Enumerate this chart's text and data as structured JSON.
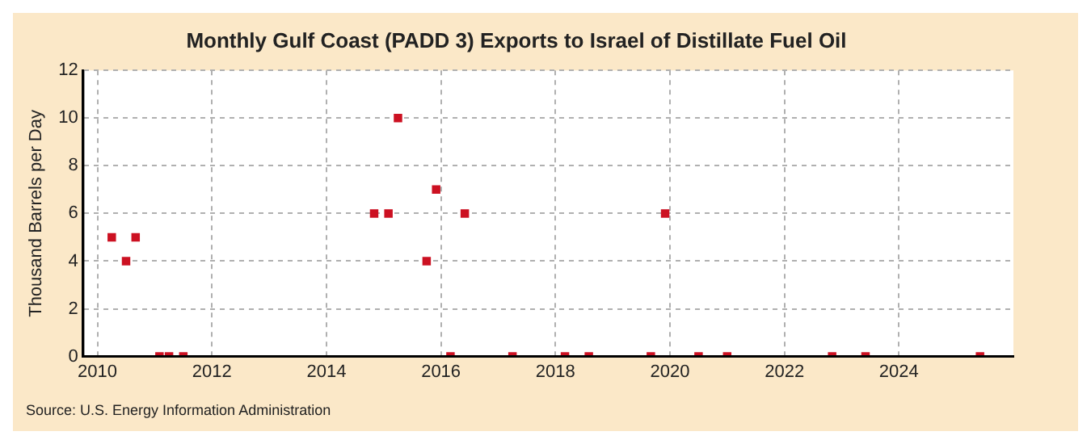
{
  "chart_data": {
    "type": "scatter",
    "title": "Monthly Gulf Coast (PADD 3) Exports to Israel of Distillate Fuel Oil",
    "ylabel": "Thousand Barrels per Day",
    "x": [
      "2010-04",
      "2010-07",
      "2010-09",
      "2011-02",
      "2011-04",
      "2011-07",
      "2014-11",
      "2015-02",
      "2015-04",
      "2015-10",
      "2015-12",
      "2016-03",
      "2016-06",
      "2017-04",
      "2018-03",
      "2018-08",
      "2019-09",
      "2019-12",
      "2020-07",
      "2021-01",
      "2022-11",
      "2023-06",
      "2025-06"
    ],
    "values": [
      5,
      4,
      5,
      0,
      0,
      0,
      6,
      6,
      10,
      4,
      7,
      0,
      6,
      0,
      0,
      0,
      0,
      6,
      0,
      0,
      0,
      0,
      0
    ],
    "color": "#cc1122",
    "marker": "square",
    "xlim": [
      "2009-10",
      "2026-01"
    ],
    "xticks": [
      "2010",
      "2012",
      "2014",
      "2016",
      "2018",
      "2020",
      "2022",
      "2024"
    ],
    "ylim": [
      0,
      12
    ],
    "yticks": [
      0,
      2,
      4,
      6,
      8,
      10,
      12
    ],
    "grid": true,
    "legend": false,
    "annotations": [
      "Source: U.S. Energy Information Administration"
    ]
  }
}
